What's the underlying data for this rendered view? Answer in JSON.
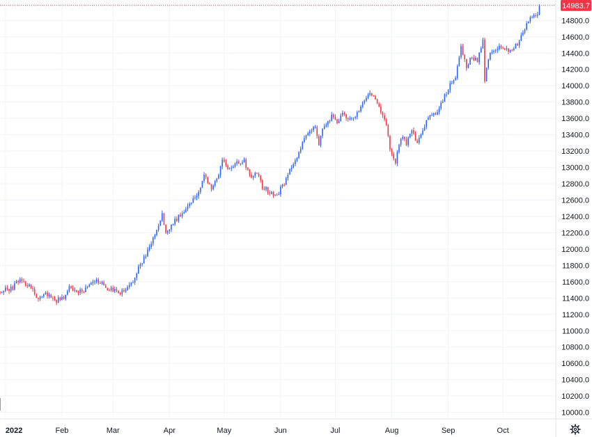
{
  "chart_data": {
    "type": "candlestick",
    "y_axis": {
      "ticks": [
        "10000.0",
        "10200.0",
        "10400.0",
        "10600.0",
        "10800.0",
        "11000.0",
        "11200.0",
        "11400.0",
        "11600.0",
        "11800.0",
        "12000.0",
        "12200.0",
        "12400.0",
        "12600.0",
        "12800.0",
        "13000.0",
        "13200.0",
        "13400.0",
        "13600.0",
        "13800.0",
        "14000.0",
        "14200.0",
        "14400.0",
        "14600.0",
        "14800.0"
      ],
      "range": [
        9920,
        15050
      ]
    },
    "x_axis": {
      "labels": [
        {
          "label": "2022",
          "date": "2022-01-01"
        },
        {
          "label": "Feb",
          "date": "2022-02-01"
        },
        {
          "label": "Mar",
          "date": "2022-03-01"
        },
        {
          "label": "Apr",
          "date": "2022-04-01"
        },
        {
          "label": "May",
          "date": "2022-05-01"
        },
        {
          "label": "Jun",
          "date": "2022-06-01"
        },
        {
          "label": "Jul",
          "date": "2022-07-01"
        },
        {
          "label": "Aug",
          "date": "2022-08-01"
        },
        {
          "label": "Sep",
          "date": "2022-09-01"
        },
        {
          "label": "Oct",
          "date": "2022-10-01"
        }
      ],
      "range": [
        "2021-12-29",
        "2022-10-30"
      ]
    },
    "path": [
      [
        "2021-12-29",
        11480
      ],
      [
        "2022-01-05",
        11520
      ],
      [
        "2022-01-08",
        11620
      ],
      [
        "2022-01-12",
        11580
      ],
      [
        "2022-01-16",
        11520
      ],
      [
        "2022-01-19",
        11360
      ],
      [
        "2022-01-22",
        11470
      ],
      [
        "2022-01-26",
        11410
      ],
      [
        "2022-01-29",
        11370
      ],
      [
        "2022-02-02",
        11400
      ],
      [
        "2022-02-05",
        11540
      ],
      [
        "2022-02-09",
        11450
      ],
      [
        "2022-02-13",
        11500
      ],
      [
        "2022-02-17",
        11570
      ],
      [
        "2022-02-21",
        11610
      ],
      [
        "2022-02-25",
        11530
      ],
      [
        "2022-03-01",
        11490
      ],
      [
        "2022-03-05",
        11470
      ],
      [
        "2022-03-09",
        11520
      ],
      [
        "2022-03-12",
        11590
      ],
      [
        "2022-03-15",
        11780
      ],
      [
        "2022-03-18",
        11880
      ],
      [
        "2022-03-22",
        12060
      ],
      [
        "2022-03-25",
        12250
      ],
      [
        "2022-03-28",
        12420
      ],
      [
        "2022-03-30",
        12180
      ],
      [
        "2022-04-03",
        12320
      ],
      [
        "2022-04-08",
        12450
      ],
      [
        "2022-04-12",
        12560
      ],
      [
        "2022-04-17",
        12690
      ],
      [
        "2022-04-20",
        12900
      ],
      [
        "2022-04-24",
        12760
      ],
      [
        "2022-04-27",
        12840
      ],
      [
        "2022-04-30",
        13100
      ],
      [
        "2022-05-04",
        12960
      ],
      [
        "2022-05-08",
        13050
      ],
      [
        "2022-05-12",
        13090
      ],
      [
        "2022-05-15",
        12880
      ],
      [
        "2022-05-19",
        12930
      ],
      [
        "2022-05-22",
        12760
      ],
      [
        "2022-05-26",
        12700
      ],
      [
        "2022-05-30",
        12660
      ],
      [
        "2022-06-03",
        12810
      ],
      [
        "2022-06-07",
        13000
      ],
      [
        "2022-06-10",
        13100
      ],
      [
        "2022-06-13",
        13320
      ],
      [
        "2022-06-17",
        13460
      ],
      [
        "2022-06-20",
        13500
      ],
      [
        "2022-06-22",
        13300
      ],
      [
        "2022-06-25",
        13520
      ],
      [
        "2022-06-29",
        13620
      ],
      [
        "2022-07-02",
        13540
      ],
      [
        "2022-07-05",
        13660
      ],
      [
        "2022-07-08",
        13570
      ],
      [
        "2022-07-12",
        13640
      ],
      [
        "2022-07-16",
        13780
      ],
      [
        "2022-07-19",
        13900
      ],
      [
        "2022-07-23",
        13850
      ],
      [
        "2022-07-26",
        13660
      ],
      [
        "2022-07-29",
        13530
      ],
      [
        "2022-07-31",
        13240
      ],
      [
        "2022-08-03",
        13060
      ],
      [
        "2022-08-06",
        13370
      ],
      [
        "2022-08-09",
        13300
      ],
      [
        "2022-08-12",
        13480
      ],
      [
        "2022-08-15",
        13280
      ],
      [
        "2022-08-18",
        13460
      ],
      [
        "2022-08-21",
        13620
      ],
      [
        "2022-08-25",
        13660
      ],
      [
        "2022-08-29",
        13820
      ],
      [
        "2022-09-02",
        14000
      ],
      [
        "2022-09-05",
        14120
      ],
      [
        "2022-09-08",
        14480
      ],
      [
        "2022-09-11",
        14230
      ],
      [
        "2022-09-14",
        14360
      ],
      [
        "2022-09-17",
        14300
      ],
      [
        "2022-09-20",
        14540
      ],
      [
        "2022-09-21",
        14080
      ],
      [
        "2022-09-24",
        14420
      ],
      [
        "2022-09-28",
        14470
      ],
      [
        "2022-10-02",
        14450
      ],
      [
        "2022-10-06",
        14420
      ],
      [
        "2022-10-10",
        14550
      ],
      [
        "2022-10-14",
        14740
      ],
      [
        "2022-10-17",
        14850
      ],
      [
        "2022-10-20",
        14900
      ],
      [
        "2022-10-22",
        14983.7
      ]
    ],
    "last_price": 14983.7,
    "last_price_label": "14983.7",
    "up_color": "#2962ff",
    "down_color": "#f23645",
    "price_label_color": "#f23645",
    "grid": true,
    "legend": "none"
  },
  "toolbar": {
    "settings_icon": "gear-icon"
  }
}
